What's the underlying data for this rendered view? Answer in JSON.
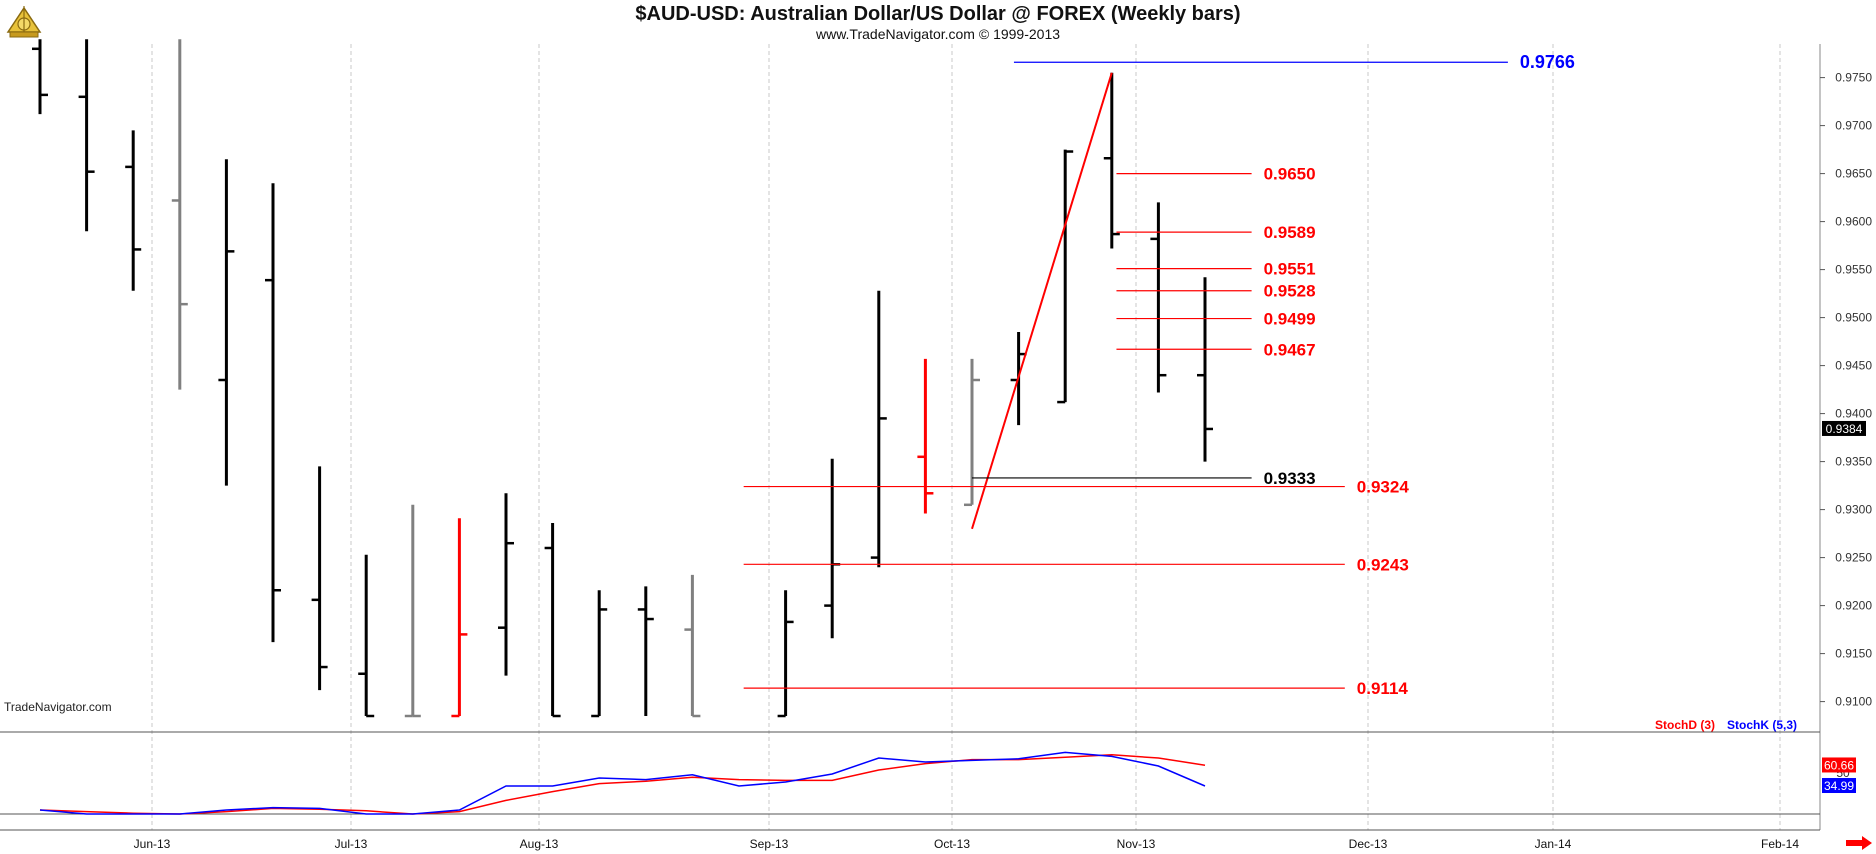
{
  "header": {
    "title": "$AUD-USD:  Australian Dollar/US Dollar @ FOREX  (Weekly bars)",
    "subtitle": "www.TradeNavigator.com © 1999-2013",
    "watermark": "TradeNavigator.com"
  },
  "colors": {
    "up_bar": "#000000",
    "gray_bar": "#808080",
    "red_bar": "#ff0000",
    "fib_line": "#ff0000",
    "high_line": "#0000ff",
    "stoch_d": "#ff0000",
    "stoch_k": "#0000ff"
  },
  "chart_data": {
    "type": "ohlc",
    "price_ylim": [
      0.9085,
      0.9785
    ],
    "price_ticks": [
      "0.9750",
      "0.9700",
      "0.9650",
      "0.9600",
      "0.9550",
      "0.9500",
      "0.9450",
      "0.9400",
      "0.9350",
      "0.9300",
      "0.9250",
      "0.9200",
      "0.9150",
      "0.9100"
    ],
    "x_labels": [
      "Jun-13",
      "Jul-13",
      "Aug-13",
      "Sep-13",
      "Oct-13",
      "Nov-13",
      "Dec-13",
      "Jan-14",
      "Feb-14"
    ],
    "last_price_label": "0.9384",
    "bars": [
      {
        "x": 0,
        "o": 0.978,
        "h": 0.979,
        "l": 0.9712,
        "c": 0.9732,
        "color": "black"
      },
      {
        "x": 1,
        "o": 0.973,
        "h": 0.979,
        "l": 0.959,
        "c": 0.9652,
        "color": "black"
      },
      {
        "x": 2,
        "o": 0.9657,
        "h": 0.9695,
        "l": 0.9528,
        "c": 0.9571,
        "color": "black"
      },
      {
        "x": 3,
        "o": 0.9622,
        "h": 0.979,
        "l": 0.9425,
        "c": 0.9514,
        "color": "gray"
      },
      {
        "x": 4,
        "o": 0.9435,
        "h": 0.9665,
        "l": 0.9325,
        "c": 0.9569,
        "color": "black"
      },
      {
        "x": 5,
        "o": 0.9539,
        "h": 0.964,
        "l": 0.9162,
        "c": 0.9216,
        "color": "black"
      },
      {
        "x": 6,
        "o": 0.9206,
        "h": 0.9345,
        "l": 0.9112,
        "c": 0.9136,
        "color": "black"
      },
      {
        "x": 7,
        "o": 0.9129,
        "h": 0.9253,
        "l": 0.9085,
        "c": 0.9085,
        "color": "black"
      },
      {
        "x": 8,
        "o": 0.9085,
        "h": 0.9305,
        "l": 0.9085,
        "c": 0.9085,
        "color": "gray"
      },
      {
        "x": 9,
        "o": 0.9085,
        "h": 0.9291,
        "l": 0.9085,
        "c": 0.917,
        "color": "red"
      },
      {
        "x": 10,
        "o": 0.9177,
        "h": 0.9317,
        "l": 0.9127,
        "c": 0.9265,
        "color": "black"
      },
      {
        "x": 11,
        "o": 0.926,
        "h": 0.9286,
        "l": 0.9085,
        "c": 0.9085,
        "color": "black"
      },
      {
        "x": 12,
        "o": 0.9085,
        "h": 0.9216,
        "l": 0.9085,
        "c": 0.9196,
        "color": "black"
      },
      {
        "x": 13,
        "o": 0.9196,
        "h": 0.922,
        "l": 0.9085,
        "c": 0.9186,
        "color": "black"
      },
      {
        "x": 14,
        "o": 0.9175,
        "h": 0.9232,
        "l": 0.9085,
        "c": 0.9085,
        "color": "gray"
      },
      {
        "x": 16,
        "o": 0.9085,
        "h": 0.9216,
        "l": 0.9085,
        "c": 0.9183,
        "color": "black"
      },
      {
        "x": 17,
        "o": 0.92,
        "h": 0.9353,
        "l": 0.9166,
        "c": 0.9243,
        "color": "black"
      },
      {
        "x": 18,
        "o": 0.925,
        "h": 0.9528,
        "l": 0.924,
        "c": 0.9395,
        "color": "black"
      },
      {
        "x": 19,
        "o": 0.9355,
        "h": 0.9457,
        "l": 0.9296,
        "c": 0.9317,
        "color": "red"
      },
      {
        "x": 20,
        "o": 0.9305,
        "h": 0.9457,
        "l": 0.9305,
        "c": 0.9435,
        "color": "gray"
      },
      {
        "x": 21,
        "o": 0.9435,
        "h": 0.9485,
        "l": 0.9388,
        "c": 0.9462,
        "color": "black"
      },
      {
        "x": 22,
        "o": 0.9412,
        "h": 0.9675,
        "l": 0.9412,
        "c": 0.9673,
        "color": "black"
      },
      {
        "x": 23,
        "o": 0.9666,
        "h": 0.9755,
        "l": 0.9572,
        "c": 0.9587,
        "color": "black"
      },
      {
        "x": 24,
        "o": 0.9582,
        "h": 0.962,
        "l": 0.9422,
        "c": 0.944,
        "color": "black"
      },
      {
        "x": 25,
        "o": 0.944,
        "h": 0.9542,
        "l": 0.935,
        "c": 0.9384,
        "color": "black"
      }
    ],
    "trend_line": {
      "from": {
        "x": 20,
        "y": 0.928
      },
      "to": {
        "x": 23,
        "y": 0.9755
      }
    },
    "levels": [
      {
        "value": 0.9766,
        "label": "0.9766",
        "color": "blue",
        "x_from": 20.9,
        "x_to": 31.5
      },
      {
        "value": 0.965,
        "label": "0.9650",
        "color": "red",
        "x_from": 23.1,
        "x_to": 26.0
      },
      {
        "value": 0.9589,
        "label": "0.9589",
        "color": "red",
        "x_from": 23.1,
        "x_to": 26.0
      },
      {
        "value": 0.9551,
        "label": "0.9551",
        "color": "red",
        "x_from": 23.1,
        "x_to": 26.0
      },
      {
        "value": 0.9528,
        "label": "0.9528",
        "color": "red",
        "x_from": 23.1,
        "x_to": 26.0
      },
      {
        "value": 0.9499,
        "label": "0.9499",
        "color": "red",
        "x_from": 23.1,
        "x_to": 26.0
      },
      {
        "value": 0.9467,
        "label": "0.9467",
        "color": "red",
        "x_from": 23.1,
        "x_to": 26.0
      },
      {
        "value": 0.9333,
        "label": "0.9333",
        "color": "black",
        "x_from": 20.0,
        "x_to": 26.0
      },
      {
        "value": 0.9324,
        "label": "0.9324",
        "color": "red",
        "x_from": 15.1,
        "x_to": 28.0
      },
      {
        "value": 0.9243,
        "label": "0.9243",
        "color": "red",
        "x_from": 15.1,
        "x_to": 28.0
      },
      {
        "value": 0.9114,
        "label": "0.9114",
        "color": "red",
        "x_from": 15.1,
        "x_to": 28.0
      }
    ],
    "stochastic": {
      "legend_d": "StochD (3)",
      "legend_k": "StochK (5,3)",
      "mid_label": "50",
      "d_label": "60.66",
      "k_label": "34.99",
      "ylim": [
        0,
        100
      ],
      "k": [
        5,
        0,
        0,
        0,
        5,
        8,
        7,
        0,
        0,
        5,
        35,
        35,
        45,
        43,
        49,
        35,
        40,
        50,
        70,
        65,
        67,
        69,
        77,
        72,
        60,
        35
      ],
      "d": [
        5,
        3,
        1,
        0,
        3,
        7,
        6,
        4,
        0,
        3,
        17,
        28,
        38,
        41,
        46,
        43,
        42,
        42,
        55,
        63,
        68,
        68,
        71,
        74,
        70,
        61
      ]
    }
  }
}
